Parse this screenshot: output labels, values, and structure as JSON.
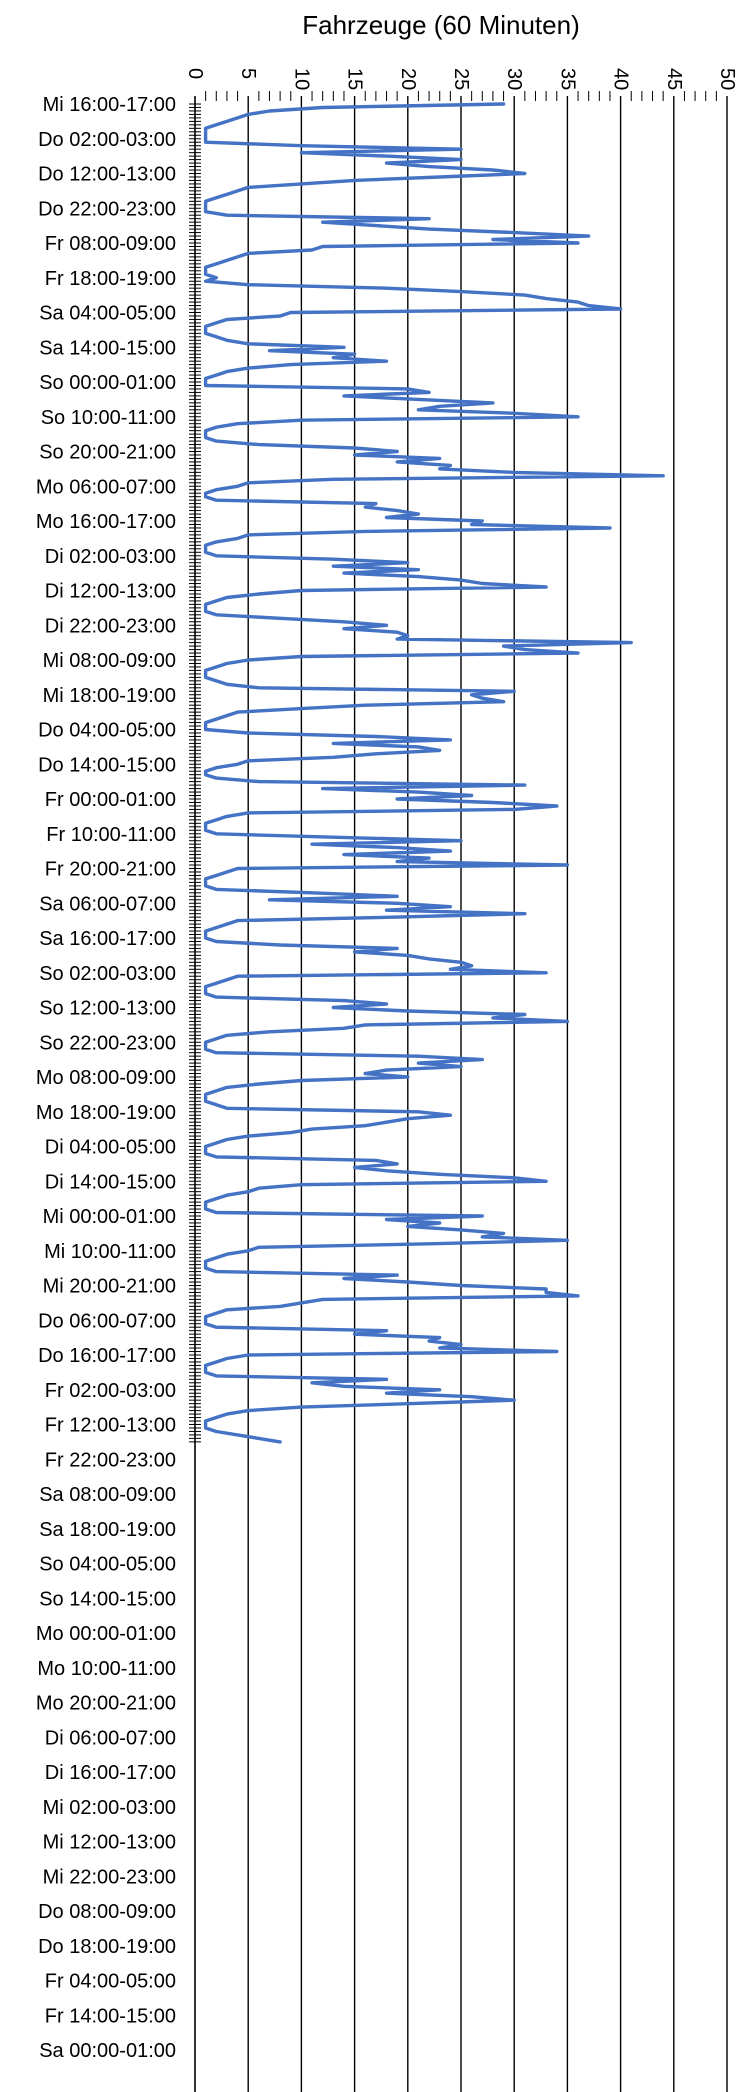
{
  "chart_data": {
    "type": "line",
    "orientation": "horizontal-value-axis-top",
    "title": "Fahrzeuge (60 Minuten)",
    "xlabel": "",
    "ylabel": "",
    "xlim": [
      0,
      50
    ],
    "x_ticks": [
      "0",
      "5",
      "10",
      "15",
      "20",
      "25",
      "30",
      "35",
      "40",
      "45",
      "50"
    ],
    "grid": true,
    "legend": "none",
    "line_color": "#4472c4",
    "category_labels": [
      "Mi 16:00-17:00",
      "Do 02:00-03:00",
      "Do 12:00-13:00",
      "Do 22:00-23:00",
      "Fr 08:00-09:00",
      "Fr 18:00-19:00",
      "Sa 04:00-05:00",
      "Sa 14:00-15:00",
      "So 00:00-01:00",
      "So 10:00-11:00",
      "So 20:00-21:00",
      "Mo 06:00-07:00",
      "Mo 16:00-17:00",
      "Di 02:00-03:00",
      "Di 12:00-13:00",
      "Di 22:00-23:00",
      "Mi 08:00-09:00",
      "Mi 18:00-19:00",
      "Do 04:00-05:00",
      "Do 14:00-15:00",
      "Fr 00:00-01:00",
      "Fr 10:00-11:00",
      "Fr 20:00-21:00",
      "Sa 06:00-07:00",
      "Sa 16:00-17:00",
      "So 02:00-03:00",
      "So 12:00-13:00",
      "So 22:00-23:00",
      "Mo 08:00-09:00",
      "Mo 18:00-19:00",
      "Di 04:00-05:00",
      "Di 14:00-15:00",
      "Mi 00:00-01:00",
      "Mi 10:00-11:00",
      "Mi 20:00-21:00",
      "Do 06:00-07:00",
      "Do 16:00-17:00",
      "Fr 02:00-03:00",
      "Fr 12:00-13:00",
      "Fr 22:00-23:00",
      "Sa 08:00-09:00",
      "Sa 18:00-19:00",
      "So 04:00-05:00",
      "So 14:00-15:00",
      "Mo 00:00-01:00",
      "Mo 10:00-11:00",
      "Mo 20:00-21:00",
      "Di 06:00-07:00",
      "Di 16:00-17:00",
      "Mi 02:00-03:00",
      "Mi 12:00-13:00",
      "Mi 22:00-23:00",
      "Do 08:00-09:00",
      "Do 18:00-19:00",
      "Fr 04:00-05:00",
      "Fr 14:00-15:00",
      "Sa 00:00-01:00"
    ],
    "hours_between_labels": 10,
    "values": [
      29,
      12,
      7,
      5,
      4,
      3,
      2,
      1,
      1,
      1,
      1,
      1,
      10,
      25,
      10,
      18,
      25,
      18,
      22,
      28,
      31,
      23,
      15,
      10,
      5,
      4,
      3,
      2,
      1,
      1,
      1,
      1,
      3,
      22,
      12,
      17,
      22,
      30,
      37,
      28,
      36,
      12,
      11,
      5,
      4,
      3,
      2,
      1,
      1,
      1,
      2,
      1,
      5,
      18,
      25,
      31,
      33,
      36,
      37,
      40,
      9,
      8,
      3,
      2,
      1,
      1,
      1,
      2,
      3,
      5,
      14,
      7,
      15,
      13,
      18,
      9,
      5,
      3,
      2,
      1,
      1,
      1,
      20,
      22,
      14,
      21,
      28,
      23,
      21,
      30,
      36,
      10,
      4,
      2,
      1,
      1,
      1,
      2,
      6,
      15,
      19,
      15,
      23,
      19,
      24,
      23,
      30,
      44,
      13,
      5,
      4,
      2,
      1,
      1,
      2,
      17,
      16,
      19,
      21,
      18,
      27,
      26,
      39,
      16,
      5,
      4,
      2,
      1,
      1,
      1,
      2,
      13,
      20,
      13,
      21,
      14,
      21,
      25,
      27,
      33,
      10,
      6,
      3,
      2,
      1,
      1,
      1,
      2,
      8,
      14,
      18,
      14,
      19,
      20,
      19,
      41,
      29,
      31,
      36,
      10,
      5,
      3,
      2,
      1,
      1,
      1,
      2,
      3,
      6,
      30,
      26,
      27,
      29,
      16,
      10,
      4,
      3,
      2,
      1,
      1,
      1,
      5,
      17,
      24,
      13,
      21,
      23,
      17,
      13,
      5,
      4,
      2,
      1,
      1,
      2,
      6,
      31,
      12,
      21,
      26,
      19,
      28,
      34,
      30,
      5,
      3,
      2,
      1,
      1,
      1,
      2,
      13,
      25,
      11,
      19,
      24,
      14,
      22,
      19,
      35,
      4,
      3,
      2,
      1,
      1,
      1,
      2,
      11,
      19,
      7,
      19,
      24,
      18,
      31,
      19,
      4,
      3,
      2,
      1,
      1,
      1,
      2,
      8,
      19,
      15,
      20,
      22,
      25,
      26,
      24,
      33,
      4,
      3,
      2,
      1,
      1,
      1,
      2,
      14,
      18,
      13,
      20,
      31,
      28,
      35,
      16,
      14,
      7,
      3,
      2,
      1,
      1,
      1,
      2,
      21,
      27,
      21,
      25,
      18,
      16,
      20,
      10,
      6,
      3,
      2,
      1,
      1,
      1,
      2,
      3,
      21,
      24,
      20,
      18,
      16,
      11,
      9,
      5,
      3,
      2,
      1,
      1,
      1,
      2,
      17,
      19,
      15,
      18,
      23,
      30,
      33,
      10,
      6,
      5,
      3,
      2,
      1,
      1,
      1,
      2,
      27,
      18,
      23,
      20,
      25,
      29,
      27,
      35,
      22,
      6,
      5,
      3,
      2,
      1,
      1,
      1,
      2,
      19,
      14,
      20,
      25,
      33,
      33,
      36,
      12,
      10,
      8,
      3,
      2,
      1,
      1,
      1,
      2,
      18,
      15,
      23,
      22,
      25,
      23,
      34,
      5,
      3,
      2,
      1,
      1,
      1,
      2,
      18,
      11,
      14,
      23,
      18,
      26,
      30,
      20,
      10,
      5,
      3,
      2,
      1,
      1,
      1,
      2,
      4,
      6,
      8
    ]
  }
}
